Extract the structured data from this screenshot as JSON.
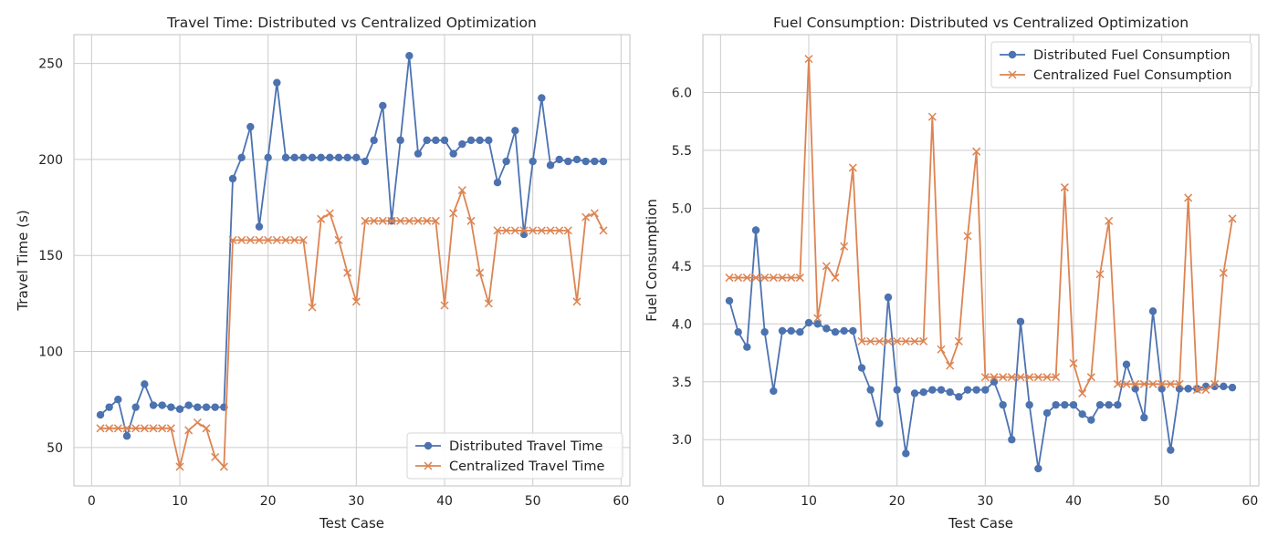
{
  "chart_data": [
    {
      "type": "line",
      "title": "Travel Time: Distributed vs Centralized Optimization",
      "xlabel": "Test Case",
      "ylabel": "Travel Time (s)",
      "xlim": [
        -2,
        61
      ],
      "ylim": [
        30,
        265
      ],
      "xticks": [
        "0",
        "10",
        "20",
        "30",
        "40",
        "50",
        "60"
      ],
      "yticks": [
        "50",
        "100",
        "150",
        "200",
        "250"
      ],
      "grid": true,
      "legend": "lower-right",
      "x": [
        1,
        2,
        3,
        4,
        5,
        6,
        7,
        8,
        9,
        10,
        11,
        12,
        13,
        14,
        15,
        16,
        17,
        18,
        19,
        20,
        21,
        22,
        23,
        24,
        25,
        26,
        27,
        28,
        29,
        30,
        31,
        32,
        33,
        34,
        35,
        36,
        37,
        38,
        39,
        40,
        41,
        42,
        43,
        44,
        45,
        46,
        47,
        48,
        49,
        50,
        51,
        52,
        53,
        54,
        55,
        56,
        57,
        58
      ],
      "series": [
        {
          "name": "Distributed Travel Time",
          "color": "#4c72b0",
          "marker": "circle",
          "values": [
            67,
            71,
            75,
            56,
            71,
            83,
            72,
            72,
            71,
            70,
            72,
            71,
            71,
            71,
            71,
            190,
            201,
            217,
            165,
            201,
            240,
            201,
            201,
            201,
            201,
            201,
            201,
            201,
            201,
            201,
            199,
            210,
            228,
            168,
            210,
            254,
            203,
            210,
            210,
            210,
            203,
            208,
            210,
            210,
            210,
            188,
            199,
            215,
            161,
            199,
            232,
            197,
            200,
            199,
            200,
            199,
            199,
            199
          ]
        },
        {
          "name": "Centralized Travel Time",
          "color": "#dd8452",
          "marker": "x",
          "values": [
            60,
            60,
            60,
            60,
            60,
            60,
            60,
            60,
            60,
            40,
            59,
            63,
            60,
            45,
            40,
            158,
            158,
            158,
            158,
            158,
            158,
            158,
            158,
            158,
            123,
            169,
            172,
            158,
            141,
            126,
            168,
            168,
            168,
            168,
            168,
            168,
            168,
            168,
            168,
            124,
            172,
            184,
            168,
            141,
            125,
            163,
            163,
            163,
            163,
            163,
            163,
            163,
            163,
            163,
            126,
            170,
            172,
            163
          ]
        }
      ]
    },
    {
      "type": "line",
      "title": "Fuel Consumption: Distributed vs Centralized Optimization",
      "xlabel": "Test Case",
      "ylabel": "Fuel Consumption",
      "xlim": [
        -2,
        61
      ],
      "ylim": [
        2.6,
        6.5
      ],
      "xticks": [
        "0",
        "10",
        "20",
        "30",
        "40",
        "50",
        "60"
      ],
      "yticks": [
        "3.0",
        "3.5",
        "4.0",
        "4.5",
        "5.0",
        "5.5",
        "6.0"
      ],
      "grid": true,
      "legend": "upper-right",
      "x": [
        1,
        2,
        3,
        4,
        5,
        6,
        7,
        8,
        9,
        10,
        11,
        12,
        13,
        14,
        15,
        16,
        17,
        18,
        19,
        20,
        21,
        22,
        23,
        24,
        25,
        26,
        27,
        28,
        29,
        30,
        31,
        32,
        33,
        34,
        35,
        36,
        37,
        38,
        39,
        40,
        41,
        42,
        43,
        44,
        45,
        46,
        47,
        48,
        49,
        50,
        51,
        52,
        53,
        54,
        55,
        56,
        57,
        58
      ],
      "series": [
        {
          "name": "Distributed Fuel Consumption",
          "color": "#4c72b0",
          "marker": "circle",
          "values": [
            4.2,
            3.93,
            3.8,
            4.81,
            3.93,
            3.42,
            3.94,
            3.94,
            3.93,
            4.01,
            4.0,
            3.96,
            3.93,
            3.94,
            3.94,
            3.62,
            3.43,
            3.14,
            4.23,
            3.43,
            2.88,
            3.4,
            3.41,
            3.43,
            3.43,
            3.41,
            3.37,
            3.43,
            3.43,
            3.43,
            3.5,
            3.3,
            3.0,
            4.02,
            3.3,
            2.75,
            3.23,
            3.3,
            3.3,
            3.3,
            3.22,
            3.17,
            3.3,
            3.3,
            3.3,
            3.65,
            3.44,
            3.19,
            4.11,
            3.44,
            2.91,
            3.44,
            3.44,
            3.44,
            3.46,
            3.46,
            3.46,
            3.45
          ]
        },
        {
          "name": "Centralized Fuel Consumption",
          "color": "#dd8452",
          "marker": "x",
          "values": [
            4.4,
            4.4,
            4.4,
            4.4,
            4.4,
            4.4,
            4.4,
            4.4,
            4.4,
            6.29,
            4.05,
            4.5,
            4.4,
            4.67,
            5.35,
            3.85,
            3.85,
            3.85,
            3.85,
            3.85,
            3.85,
            3.85,
            3.85,
            5.79,
            3.78,
            3.64,
            3.85,
            4.76,
            5.49,
            3.54,
            3.54,
            3.54,
            3.54,
            3.54,
            3.54,
            3.54,
            3.54,
            3.54,
            5.18,
            3.66,
            3.4,
            3.54,
            4.43,
            4.89,
            3.48,
            3.48,
            3.48,
            3.48,
            3.48,
            3.48,
            3.48,
            3.48,
            5.09,
            3.43,
            3.43,
            3.48,
            4.44,
            4.91
          ]
        }
      ]
    }
  ]
}
